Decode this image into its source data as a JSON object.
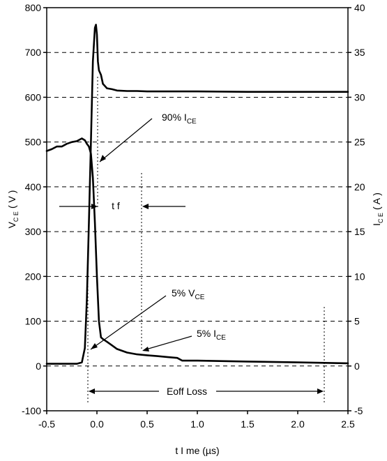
{
  "chart_data": {
    "type": "line",
    "xlabel": "t I me  (µs)",
    "ylabel_left": {
      "main": "V",
      "sub": "C E",
      "unit": "( V )"
    },
    "ylabel_right": {
      "main": "I",
      "sub": "C E",
      "unit": "( A )"
    },
    "xlim": [
      -0.5,
      2.5
    ],
    "ylim_left": [
      -100,
      800
    ],
    "ylim_right": [
      -5,
      40
    ],
    "grid": true,
    "x_ticks": [
      "-0.5",
      "0.0",
      "0.5",
      "1.0",
      "1.5",
      "2.0",
      "2.5"
    ],
    "y_ticks_left": [
      "-100",
      "0",
      "100",
      "200",
      "300",
      "400",
      "500",
      "600",
      "700",
      "800"
    ],
    "y_ticks_right": [
      "-5",
      "0",
      "5",
      "10",
      "15",
      "20",
      "25",
      "30",
      "35",
      "40"
    ],
    "series": [
      {
        "name": "VCE",
        "axis": "left",
        "x": [
          -0.5,
          -0.3,
          -0.2,
          -0.15,
          -0.12,
          -0.1,
          -0.08,
          -0.06,
          -0.04,
          -0.02,
          -0.01,
          0.0,
          0.01,
          0.02,
          0.04,
          0.06,
          0.08,
          0.1,
          0.15,
          0.2,
          0.3,
          0.4,
          0.5,
          0.7,
          1.0,
          1.5,
          2.0,
          2.5
        ],
        "values": [
          5,
          5,
          5,
          8,
          40,
          150,
          320,
          500,
          680,
          755,
          762,
          740,
          680,
          660,
          650,
          630,
          625,
          620,
          618,
          615,
          614,
          614,
          613,
          613,
          613,
          612,
          612,
          612
        ]
      },
      {
        "name": "ICE",
        "axis": "right",
        "x": [
          -0.5,
          -0.45,
          -0.4,
          -0.35,
          -0.3,
          -0.25,
          -0.2,
          -0.15,
          -0.12,
          -0.1,
          -0.08,
          -0.06,
          -0.04,
          -0.02,
          0.0,
          0.02,
          0.04,
          0.06,
          0.1,
          0.15,
          0.2,
          0.3,
          0.4,
          0.5,
          0.6,
          0.7,
          0.8,
          0.85,
          1.0,
          1.5,
          2.0,
          2.5
        ],
        "values": [
          24,
          24.2,
          24.5,
          24.5,
          24.8,
          25.0,
          25.1,
          25.4,
          25.2,
          24.8,
          24.5,
          23.7,
          21.0,
          16.0,
          10.0,
          5.0,
          3.2,
          3.0,
          2.7,
          2.3,
          1.9,
          1.5,
          1.3,
          1.2,
          1.1,
          1.0,
          0.9,
          0.6,
          0.6,
          0.5,
          0.4,
          0.3
        ]
      }
    ],
    "annotations": {
      "ice_90": {
        "main": "90% I",
        "sub": "CE"
      },
      "vce_5": {
        "main": "5% V",
        "sub": "CE"
      },
      "ice_5": {
        "main": "5% I",
        "sub": "CE"
      },
      "tf": "t f",
      "eoff": "Eoff Loss"
    }
  }
}
